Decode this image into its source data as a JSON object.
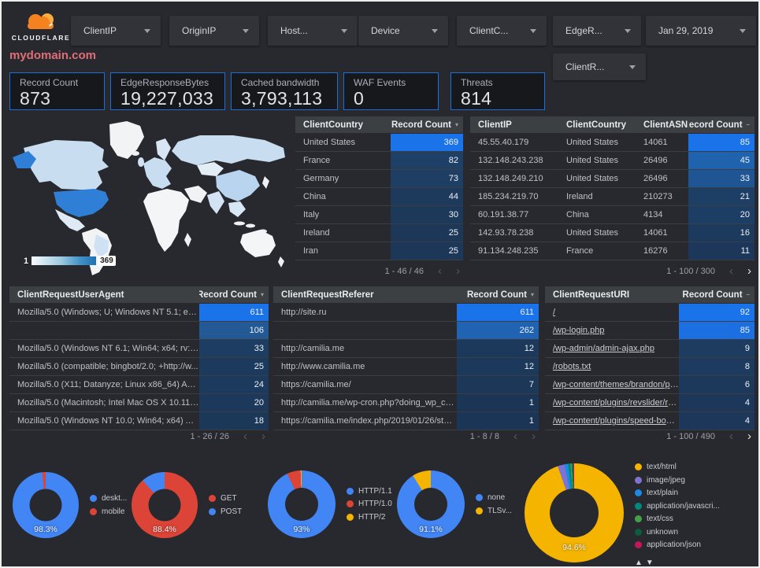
{
  "header": {
    "logo_text": "CLOUDFLARE",
    "title": "mydomain.com",
    "filters": [
      {
        "label": "ClientIP"
      },
      {
        "label": "OriginIP"
      },
      {
        "label": "Host..."
      },
      {
        "label": "Device"
      },
      {
        "label": "ClientC..."
      },
      {
        "label": "EdgeR..."
      }
    ],
    "date_filter": "Jan 29, 2019",
    "secondary_filter": "ClientR..."
  },
  "scorecards": [
    {
      "label": "Record Count",
      "value": "873"
    },
    {
      "label": "EdgeResponseBytes",
      "value": "19,227,033"
    },
    {
      "label": "Cached bandwidth",
      "value": "3,793,113"
    },
    {
      "label": "WAF Events",
      "value": "0"
    },
    {
      "label": "Threats",
      "value": "814"
    }
  ],
  "map": {
    "scale_min": "1",
    "scale_max": "369"
  },
  "icons": {
    "prev": "‹",
    "next": "›",
    "sort_desc": "▾",
    "sort_none": "–",
    "legend_up": "▲",
    "legend_down": "▼"
  },
  "tables": [
    {
      "id": "country",
      "columns": [
        "ClientCountry",
        "Record Count"
      ],
      "sort": "desc",
      "rows": [
        {
          "cells": [
            "United States"
          ],
          "count": "369",
          "heat": "#1a73e8"
        },
        {
          "cells": [
            "France"
          ],
          "count": "82",
          "heat": "#1f4066"
        },
        {
          "cells": [
            "Germany"
          ],
          "count": "73",
          "heat": "#1e3e63"
        },
        {
          "cells": [
            "China"
          ],
          "count": "44",
          "heat": "#1d3a5c"
        },
        {
          "cells": [
            "Italy"
          ],
          "count": "30",
          "heat": "#1c395a"
        },
        {
          "cells": [
            "Ireland"
          ],
          "count": "25",
          "heat": "#1c3758"
        },
        {
          "cells": [
            "Iran"
          ],
          "count": "25",
          "heat": "#1c3758"
        }
      ],
      "pagination": {
        "range": "1 - 46 / 46",
        "prev_enabled": false,
        "next_enabled": false
      }
    },
    {
      "id": "clientip",
      "columns": [
        "ClientIP",
        "ClientCountry",
        "ClientASN",
        "Record Count"
      ],
      "sort": "none",
      "rows": [
        {
          "cells": [
            "45.55.40.179",
            "United States",
            "14061"
          ],
          "count": "85",
          "heat": "#1a73e8"
        },
        {
          "cells": [
            "132.148.243.238",
            "United States",
            "26496"
          ],
          "count": "45",
          "heat": "#1f62ae"
        },
        {
          "cells": [
            "132.148.249.210",
            "United States",
            "26496"
          ],
          "count": "33",
          "heat": "#1f5593"
        },
        {
          "cells": [
            "185.234.219.70",
            "Ireland",
            "210273"
          ],
          "count": "21",
          "heat": "#1d3f66"
        },
        {
          "cells": [
            "60.191.38.77",
            "China",
            "4134"
          ],
          "count": "20",
          "heat": "#1d3e64"
        },
        {
          "cells": [
            "142.93.78.238",
            "United States",
            "14061"
          ],
          "count": "16",
          "heat": "#1c3a5e"
        },
        {
          "cells": [
            "91.134.248.235",
            "France",
            "16276"
          ],
          "count": "11",
          "heat": "#1c3759"
        }
      ],
      "pagination": {
        "range": "1 - 100 / 300",
        "prev_enabled": false,
        "next_enabled": true
      }
    },
    {
      "id": "useragent",
      "columns": [
        "ClientRequestUserAgent",
        "Record Count"
      ],
      "sort": "desc",
      "rows": [
        {
          "cells": [
            "Mozilla/5.0 (Windows; U; Windows NT 5.1; en-U..."
          ],
          "count": "611",
          "heat": "#1a73e8"
        },
        {
          "cells": [
            ""
          ],
          "count": "106",
          "heat": "#235a95"
        },
        {
          "cells": [
            "Mozilla/5.0 (Windows NT 6.1; Win64; x64; rv:64..."
          ],
          "count": "33",
          "heat": "#1d3d62"
        },
        {
          "cells": [
            "Mozilla/5.0 (compatible; bingbot/2.0; +http://w..."
          ],
          "count": "25",
          "heat": "#1c3a5e"
        },
        {
          "cells": [
            "Mozilla/5.0 (X11; Datanyze; Linux x86_64) Appl..."
          ],
          "count": "24",
          "heat": "#1c3a5d"
        },
        {
          "cells": [
            "Mozilla/5.0 (Macintosh; Intel Mac OS X 10.11; r..."
          ],
          "count": "20",
          "heat": "#1c385a"
        },
        {
          "cells": [
            "Mozilla/5.0 (Windows NT 10.0; Win64; x64) App..."
          ],
          "count": "18",
          "heat": "#1c3859"
        }
      ],
      "pagination": {
        "range": "1 - 26 / 26",
        "prev_enabled": false,
        "next_enabled": false
      }
    },
    {
      "id": "referer",
      "columns": [
        "ClientRequestReferer",
        "Record Count"
      ],
      "sort": "desc",
      "rows": [
        {
          "cells": [
            "http://site.ru"
          ],
          "count": "611",
          "heat": "#1a73e8"
        },
        {
          "cells": [
            ""
          ],
          "count": "262",
          "heat": "#1f63b2"
        },
        {
          "cells": [
            "http://camilia.me"
          ],
          "count": "12",
          "heat": "#1c385a"
        },
        {
          "cells": [
            "http://www.camilia.me"
          ],
          "count": "12",
          "heat": "#1c385a"
        },
        {
          "cells": [
            "https://camilia.me/"
          ],
          "count": "7",
          "heat": "#1c3758"
        },
        {
          "cells": [
            "http://camilia.me/wp-cron.php?doing_wp_cron..."
          ],
          "count": "1",
          "heat": "#1b3556"
        },
        {
          "cells": [
            "https://camilia.me/index.php/2019/01/26/stor..."
          ],
          "count": "1",
          "heat": "#1b3556"
        }
      ],
      "pagination": {
        "range": "1 - 8 / 8",
        "prev_enabled": false,
        "next_enabled": false
      }
    },
    {
      "id": "uri",
      "columns": [
        "ClientRequestURI",
        "Record Count"
      ],
      "sort": "none",
      "rows": [
        {
          "cells": [
            "/"
          ],
          "count": "92",
          "heat": "#1a73e8"
        },
        {
          "cells": [
            "/wp-login.php"
          ],
          "count": "85",
          "heat": "#1b6fe0"
        },
        {
          "cells": [
            "/wp-admin/admin-ajax.php"
          ],
          "count": "9",
          "heat": "#1d3c60"
        },
        {
          "cells": [
            "/robots.txt"
          ],
          "count": "8",
          "heat": "#1d3b5e"
        },
        {
          "cells": [
            "/wp-content/themes/brandon/plu..."
          ],
          "count": "6",
          "heat": "#1c395c"
        },
        {
          "cells": [
            "/wp-content/plugins/revslider/rs-p..."
          ],
          "count": "4",
          "heat": "#1c3759"
        },
        {
          "cells": [
            "/wp-content/plugins/speed-booste..."
          ],
          "count": "4",
          "heat": "#1c3759"
        }
      ],
      "pagination": {
        "range": "1 - 100 / 490",
        "prev_enabled": false,
        "next_enabled": true
      }
    }
  ],
  "charts": [
    {
      "id": "device",
      "percent_label": "98.3%",
      "slices": [
        {
          "label": "deskt...",
          "value": 98.3,
          "color": "#4285f4"
        },
        {
          "label": "mobile",
          "value": 1.7,
          "color": "#db4437"
        }
      ]
    },
    {
      "id": "method",
      "percent_label": "88.4%",
      "slices": [
        {
          "label": "GET",
          "value": 88.4,
          "color": "#db4437"
        },
        {
          "label": "POST",
          "value": 11.6,
          "color": "#4285f4"
        }
      ]
    },
    {
      "id": "protocol",
      "percent_label": "93%",
      "slices": [
        {
          "label": "HTTP/1.1",
          "value": 93,
          "color": "#4285f4"
        },
        {
          "label": "HTTP/1.0",
          "value": 6.5,
          "color": "#db4437"
        },
        {
          "label": "HTTP/2",
          "value": 0.5,
          "color": "#f4b400"
        }
      ]
    },
    {
      "id": "tls",
      "percent_label": "91.1%",
      "slices": [
        {
          "label": "none",
          "value": 91.1,
          "color": "#4285f4"
        },
        {
          "label": "TLSv...",
          "value": 8.9,
          "color": "#f4b400"
        }
      ]
    },
    {
      "id": "contenttype",
      "percent_label": "94.6%",
      "legend_scroll": true,
      "slices": [
        {
          "label": "text/html",
          "value": 94.6,
          "color": "#f4b400"
        },
        {
          "label": "image/jpeg",
          "value": 2.2,
          "color": "#7e73d0"
        },
        {
          "label": "text/plain",
          "value": 1.2,
          "color": "#1e88e5"
        },
        {
          "label": "application/javascri...",
          "value": 0.8,
          "color": "#00897b"
        },
        {
          "label": "text/css",
          "value": 0.5,
          "color": "#43a047"
        },
        {
          "label": "unknown",
          "value": 0.4,
          "color": "#0d5c3f"
        },
        {
          "label": "application/json",
          "value": 0.3,
          "color": "#c2185b"
        }
      ]
    }
  ]
}
